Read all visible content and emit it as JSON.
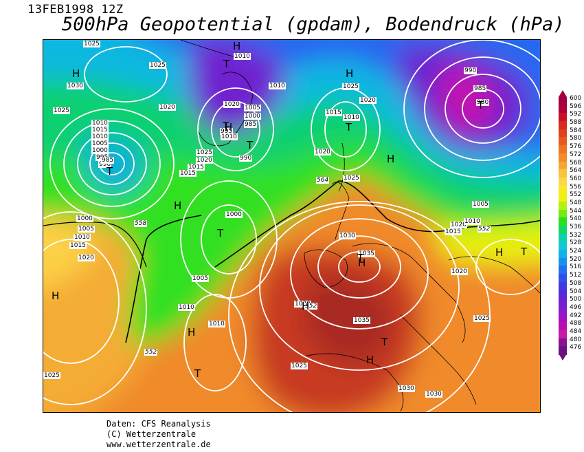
{
  "header": {
    "date": "13FEB1998 12Z",
    "title": "500hPa Geopotential (gpdam), Bodendruck (hPa)"
  },
  "isobar_labels": [
    "1025",
    "1030",
    "1025",
    "1010",
    "1020",
    "1025",
    "1010",
    "1015",
    "1010",
    "1005",
    "1000",
    "995",
    "990",
    "985",
    "1020",
    "1005",
    "1000",
    "985",
    "995",
    "1010",
    "1025",
    "1020",
    "1015",
    "1015",
    "990",
    "1015",
    "1010",
    "1010",
    "1020",
    "1025",
    "1020",
    "1025",
    "1000",
    "1005",
    "1010",
    "1015",
    "1020",
    "1000",
    "1005",
    "1010",
    "1015",
    "1020",
    "1005",
    "1010",
    "1010",
    "1030",
    "1035",
    "1030",
    "1035",
    "1025",
    "1025",
    "1020",
    "1030",
    "1030",
    "1025",
    "990",
    "985",
    "980"
  ],
  "contour_labels": [
    "564",
    "558",
    "552",
    "552",
    "552"
  ],
  "symbols": [
    "H",
    "T",
    "H",
    "T",
    "T",
    "H",
    "T",
    "H",
    "H",
    "T",
    "H",
    "T",
    "T",
    "H",
    "T",
    "H",
    "H",
    "H",
    "T",
    "T",
    "H",
    "T",
    "H"
  ],
  "scale": {
    "values": [
      "600",
      "596",
      "592",
      "588",
      "584",
      "580",
      "576",
      "572",
      "568",
      "564",
      "560",
      "556",
      "552",
      "548",
      "544",
      "540",
      "536",
      "532",
      "528",
      "524",
      "520",
      "516",
      "512",
      "508",
      "504",
      "500",
      "496",
      "492",
      "488",
      "484",
      "480",
      "476"
    ],
    "colors": [
      "#a00040",
      "#b0003a",
      "#c8102a",
      "#d8281e",
      "#e0401c",
      "#e65a1c",
      "#ec7424",
      "#f08c2a",
      "#f4a832",
      "#f8c43a",
      "#fcd848",
      "#fce820",
      "#f0f010",
      "#b8f010",
      "#70ec10",
      "#28e020",
      "#10d868",
      "#10d0a8",
      "#10c8d8",
      "#10b0e8",
      "#1890f0",
      "#2070f0",
      "#3050e8",
      "#4038e0",
      "#5828d8",
      "#7020d0",
      "#8818c8",
      "#a010c0",
      "#b810b0",
      "#c818a8",
      "#8c1094",
      "#6c1080"
    ]
  },
  "credits": {
    "line1": "Daten: CFS Reanalysis",
    "line2": "(C) Wetterzentrale",
    "line3": "www.wetterzentrale.de"
  }
}
